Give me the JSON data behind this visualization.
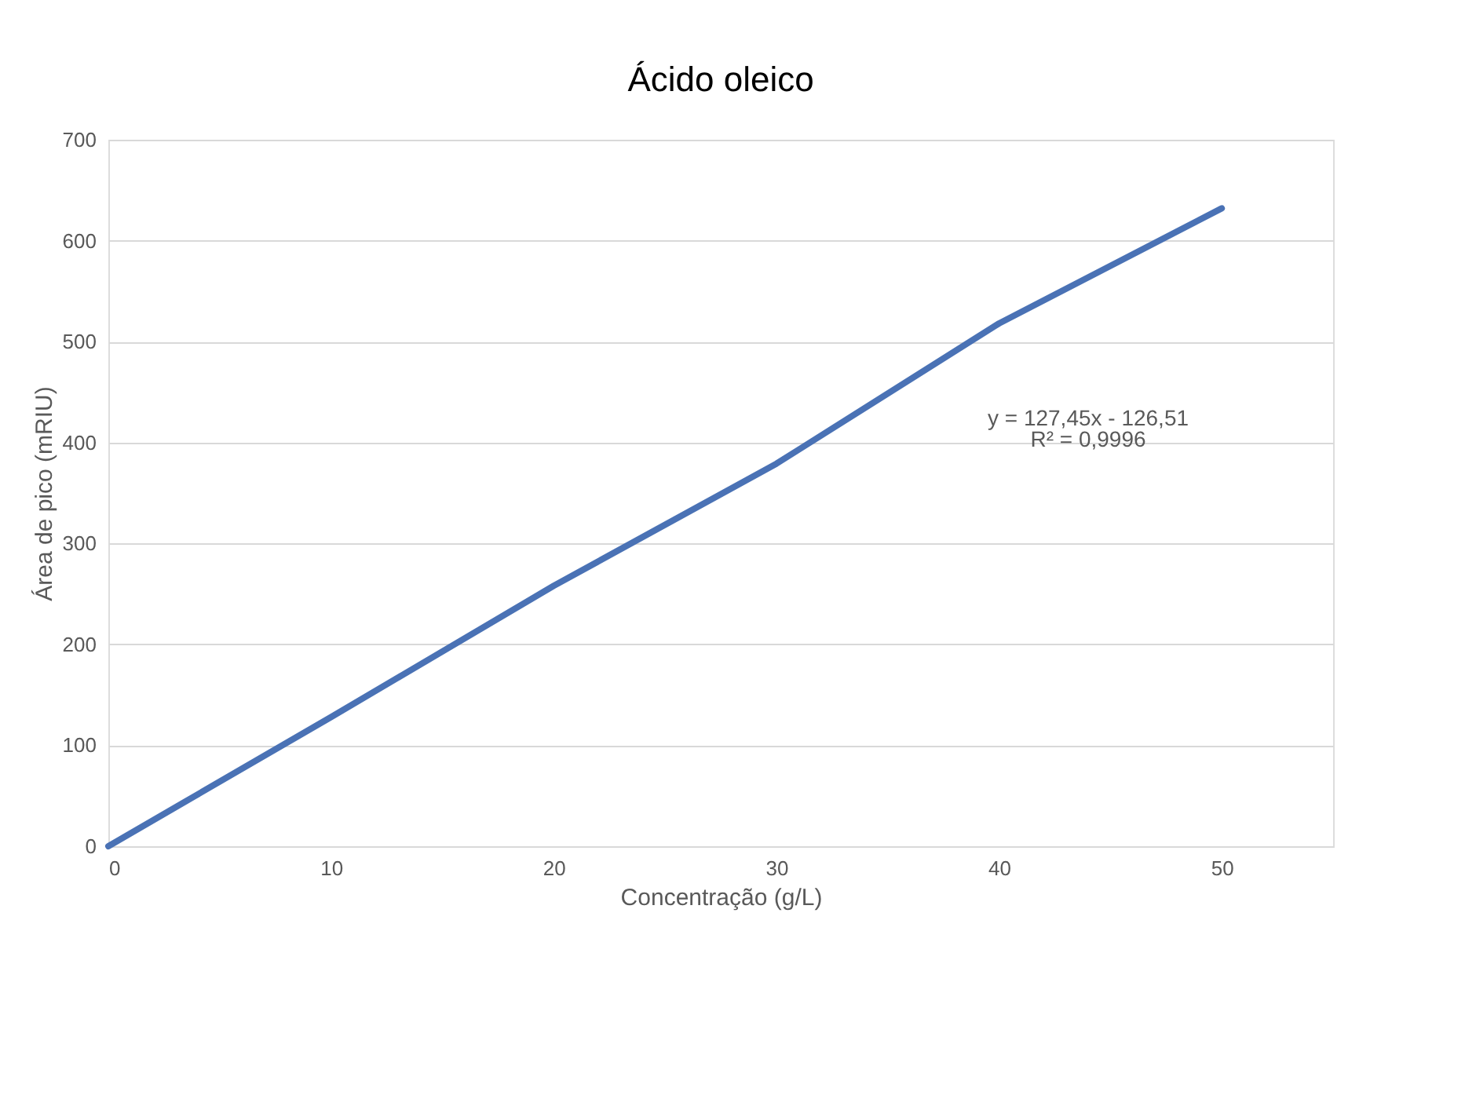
{
  "chart_data": {
    "type": "line",
    "title": "Ácido oleico",
    "xlabel": "Concentração (g/L)",
    "ylabel": "Área de pico (mRIU)",
    "x": [
      0,
      10,
      20,
      30,
      40,
      50
    ],
    "series": [
      {
        "color": "#4a72b5",
        "values": [
          0,
          128,
          258,
          379,
          518,
          632
        ]
      }
    ],
    "xlim": [
      0,
      55
    ],
    "xticks": [
      0,
      10,
      20,
      30,
      40,
      50
    ],
    "ylim": [
      0,
      700
    ],
    "yticks": [
      0,
      100,
      200,
      300,
      400,
      500,
      600,
      700
    ],
    "grid": "y",
    "marker": "none",
    "line_style": "solid",
    "annotations": [
      "y = 127,45x - 126,51",
      "R² = 0,9996"
    ]
  }
}
